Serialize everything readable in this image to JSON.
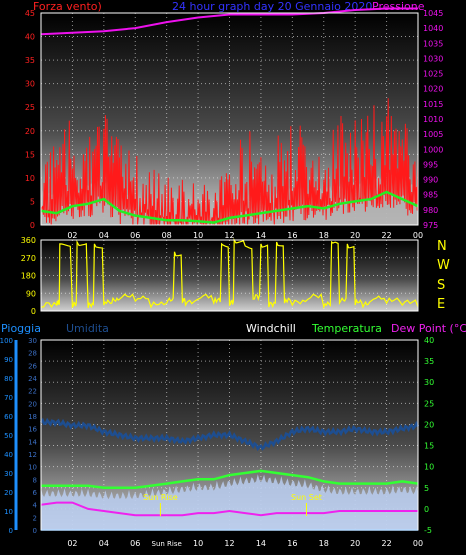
{
  "header": {
    "left_label": "Forza vento)",
    "center_label": "24 hour graph day 20 Gennaio 2020",
    "right_label": "Pressione"
  },
  "lower_header": {
    "rain": "Pioggia",
    "humidity": "Umidita",
    "windchill": "Windchill",
    "temperature": "Temperatura",
    "dewpoint": "Dew Point (°C)"
  },
  "compass": [
    "N",
    "W",
    "S",
    "E",
    "N"
  ],
  "colors": {
    "wind": "#ff1a1a",
    "gust_fill": "#b0b0b0",
    "avg_wind": "#22ee22",
    "pressure": "#ee11ee",
    "direction": "#ffff00",
    "humidity": "#1e4e90",
    "temperature": "#33ff33",
    "dewpoint": "#ee22ee",
    "rain": "#1e90ff",
    "humidity_fill": "#b8ccf0",
    "wind_label": "#ff2020",
    "title_blue": "#3333ff",
    "windchill_label": "#ffffff"
  },
  "chart_data": [
    {
      "id": "wind-pressure",
      "type": "line",
      "x_tick_labels": [
        "02",
        "04",
        "06",
        "08",
        "10",
        "12",
        "14",
        "16",
        "18",
        "20",
        "22",
        "00"
      ],
      "y_left": {
        "label": "Forza vento)",
        "range": [
          0,
          45
        ],
        "ticks": [
          "0",
          "5",
          "10",
          "15",
          "20",
          "25",
          "30",
          "35",
          "40",
          "45"
        ]
      },
      "y_right": {
        "label": "Pressione",
        "range": [
          975,
          1045
        ],
        "ticks": [
          "975",
          "980",
          "985",
          "990",
          "995",
          "1000",
          "1005",
          "1010",
          "1015",
          "1020",
          "1025",
          "1030",
          "1035",
          "1040",
          "1045"
        ]
      },
      "grid": true,
      "series": [
        {
          "name": "pressure",
          "axis": "right",
          "x": [
            0,
            2,
            4,
            6,
            8,
            10,
            12,
            14,
            16,
            18,
            20,
            22,
            24
          ],
          "y": [
            1038,
            1038.5,
            1039,
            1040,
            1042,
            1043.5,
            1044.5,
            1044.5,
            1044.5,
            1045,
            1046,
            1046.5,
            1046.5
          ]
        },
        {
          "name": "avg-wind",
          "axis": "left",
          "x": [
            0,
            1,
            2,
            3,
            4,
            5,
            6,
            7,
            8,
            9,
            10,
            11,
            12,
            13,
            14,
            15,
            16,
            17,
            18,
            19,
            20,
            21,
            22,
            23,
            24
          ],
          "y": [
            3,
            2.5,
            4,
            4.5,
            5.5,
            3,
            2,
            1.5,
            1,
            1,
            0.8,
            0.5,
            1.5,
            2,
            2.5,
            3,
            3.5,
            4,
            3.5,
            4.5,
            5,
            5.5,
            7,
            5.5,
            4
          ]
        },
        {
          "name": "wind-gust",
          "axis": "left",
          "x": [
            0,
            1,
            2,
            3,
            4,
            5,
            6,
            7,
            8,
            9,
            10,
            11,
            12,
            13,
            14,
            15,
            16,
            17,
            18,
            19,
            20,
            21,
            22,
            23,
            24
          ],
          "y": [
            18,
            16,
            22,
            20,
            24,
            17,
            14,
            12,
            10,
            9,
            8,
            8,
            14,
            18,
            20,
            19,
            22,
            21,
            18,
            22,
            23,
            24,
            26,
            22,
            18
          ]
        }
      ]
    },
    {
      "id": "wind-direction",
      "type": "line",
      "y_ticks": [
        "0",
        "90",
        "180",
        "270",
        "360"
      ],
      "range": [
        0,
        360
      ],
      "series": [
        {
          "name": "direction",
          "x": [
            0,
            1,
            1.2,
            2,
            2.3,
            3,
            3.4,
            4,
            4.5,
            5,
            6,
            7,
            8,
            8.5,
            9,
            9.2,
            10,
            11,
            11.5,
            12,
            12.3,
            13,
            13.5,
            14,
            14.5,
            15,
            15.5,
            16,
            17,
            18,
            18.5,
            19,
            19.5,
            20,
            20.5,
            21,
            22,
            23,
            24
          ],
          "y": [
            20,
            30,
            340,
            20,
            350,
            15,
            340,
            30,
            40,
            60,
            50,
            20,
            40,
            300,
            40,
            30,
            60,
            40,
            340,
            30,
            360,
            330,
            60,
            340,
            20,
            350,
            40,
            30,
            60,
            20,
            350,
            40,
            340,
            30,
            20,
            50,
            40,
            30,
            20
          ]
        }
      ]
    },
    {
      "id": "humidity-temperature",
      "type": "line",
      "x_tick_labels": [
        "02",
        "04",
        "06",
        "Sun Rise",
        "10",
        "12",
        "14",
        "16",
        "18",
        "20",
        "22",
        "00"
      ],
      "y_left_rain": {
        "label": "Pioggia",
        "range": [
          0,
          100
        ],
        "ticks": [
          "0",
          "10",
          "20",
          "30",
          "40",
          "50",
          "60",
          "70",
          "80",
          "90",
          "100"
        ]
      },
      "y_left_hum": {
        "label": "Umidita",
        "range": [
          0,
          30
        ],
        "ticks": [
          "0",
          "2",
          "4",
          "6",
          "8",
          "10",
          "12",
          "14",
          "16",
          "18",
          "20",
          "22",
          "24",
          "26",
          "28",
          "30"
        ]
      },
      "y_right": {
        "label": "Dew Point (°C)",
        "range": [
          -5,
          40
        ],
        "ticks": [
          "-5",
          "0",
          "5",
          "10",
          "15",
          "20",
          "25",
          "30",
          "35",
          "40"
        ]
      },
      "annotations": [
        {
          "text": "Sun Rise",
          "x": 7.6
        },
        {
          "text": "Sun Set",
          "x": 16.9
        }
      ],
      "grid": true,
      "series": [
        {
          "name": "humidity",
          "x": [
            0,
            1,
            2,
            3,
            4,
            5,
            6,
            7,
            8,
            9,
            10,
            11,
            12,
            13,
            14,
            15,
            16,
            17,
            18,
            19,
            20,
            21,
            22,
            23,
            24
          ],
          "y": [
            17,
            17,
            16.5,
            16.5,
            15.5,
            15,
            14.5,
            14.5,
            14.5,
            14,
            14.5,
            15,
            15,
            14,
            13,
            14,
            15.5,
            16,
            15.5,
            15.5,
            16,
            15.5,
            15.5,
            16,
            16.5
          ]
        },
        {
          "name": "temperature",
          "x": [
            0,
            1,
            2,
            3,
            4,
            5,
            6,
            7,
            8,
            9,
            10,
            11,
            12,
            13,
            14,
            15,
            16,
            17,
            18,
            19,
            20,
            21,
            22,
            23,
            24
          ],
          "y": [
            5.5,
            5.5,
            5.5,
            5.5,
            5,
            5,
            5,
            5.5,
            6,
            6.5,
            7,
            7,
            8,
            8.5,
            9,
            8.5,
            8,
            7.5,
            6.5,
            6,
            6,
            6,
            6,
            6.5,
            6
          ]
        },
        {
          "name": "dewpoint",
          "x": [
            0,
            1,
            2,
            3,
            4,
            5,
            6,
            7,
            8,
            9,
            10,
            11,
            12,
            13,
            14,
            15,
            16,
            17,
            18,
            19,
            20,
            21,
            22,
            23,
            24
          ],
          "y": [
            1,
            1.5,
            1.5,
            0,
            -0.5,
            -1,
            -1.5,
            -1.5,
            -1.5,
            -1.5,
            -1,
            -1,
            -0.5,
            -1,
            -1.5,
            -1,
            -1,
            -1,
            -1,
            -0.5,
            -0.5,
            -0.5,
            -0.5,
            -0.5,
            -0.5
          ]
        },
        {
          "name": "rain",
          "x": [
            0,
            24
          ],
          "y": [
            0,
            0
          ]
        }
      ]
    }
  ]
}
